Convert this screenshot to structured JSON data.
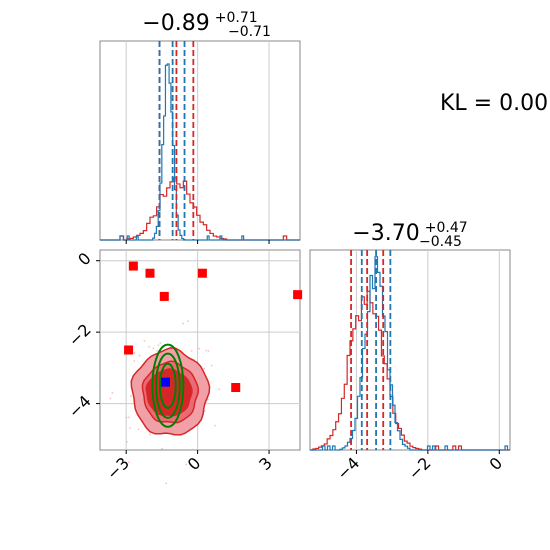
{
  "kl_annotation": "KL = 0.00",
  "chart_data": [
    {
      "panel": "marginal-x",
      "type": "histogram",
      "title": {
        "value": "−0.89",
        "plus": "+0.71",
        "minus": "−0.71"
      },
      "xlim": [
        -4.1,
        4.3
      ],
      "xticks": [
        -3,
        0,
        3
      ],
      "colors": {
        "red": "#d62728",
        "blue": "#1f77b4"
      },
      "quantile_lines": {
        "red": [
          -1.6,
          -0.89,
          -0.18
        ],
        "blue": [
          -1.6,
          -1.05,
          -0.55
        ]
      },
      "series": [
        {
          "color": "red",
          "distribution": "gaussian",
          "mean": -0.89,
          "std": 0.71,
          "peak": 0.3
        },
        {
          "color": "blue",
          "distribution": "gaussian",
          "mean": -1.25,
          "std": 0.2,
          "peak": 0.9
        }
      ]
    },
    {
      "panel": "joint",
      "type": "scatter",
      "xlim": [
        -4.1,
        4.3
      ],
      "ylim": [
        -5.3,
        0.3
      ],
      "xticks": [
        -3,
        0,
        3
      ],
      "yticks": [
        0,
        -2,
        -4
      ],
      "red_markers": [
        [
          -2.7,
          -0.15
        ],
        [
          -2.0,
          -0.35
        ],
        [
          0.2,
          -0.35
        ],
        [
          -1.4,
          -1.0
        ],
        [
          4.2,
          -0.95
        ],
        [
          -2.9,
          -2.5
        ],
        [
          1.6,
          -3.55
        ]
      ],
      "blue_marker": [
        -1.35,
        -3.4
      ],
      "filled_contours": {
        "color": "#d62728",
        "center": [
          -1.15,
          -3.7
        ],
        "radii": [
          1.6,
          0.95
        ]
      },
      "green_contours": {
        "color": "#008000",
        "center": [
          -1.25,
          -3.5
        ],
        "radii": [
          0.65,
          1.15
        ]
      }
    },
    {
      "panel": "marginal-y",
      "type": "histogram",
      "title": {
        "value": "−3.70",
        "plus": "+0.47",
        "minus": "−0.45"
      },
      "xlim": [
        -5.3,
        0.3
      ],
      "xticks": [
        -4,
        -2,
        0
      ],
      "quantile_lines": {
        "red": [
          -4.15,
          -3.7,
          -3.25
        ],
        "blue": [
          -3.85,
          -3.45,
          -3.05
        ]
      },
      "series": [
        {
          "color": "red",
          "distribution": "gaussian",
          "mean": -3.7,
          "std": 0.46,
          "peak": 0.8
        },
        {
          "color": "blue",
          "distribution": "gaussian",
          "mean": -3.45,
          "std": 0.3,
          "peak": 0.9
        }
      ]
    }
  ]
}
